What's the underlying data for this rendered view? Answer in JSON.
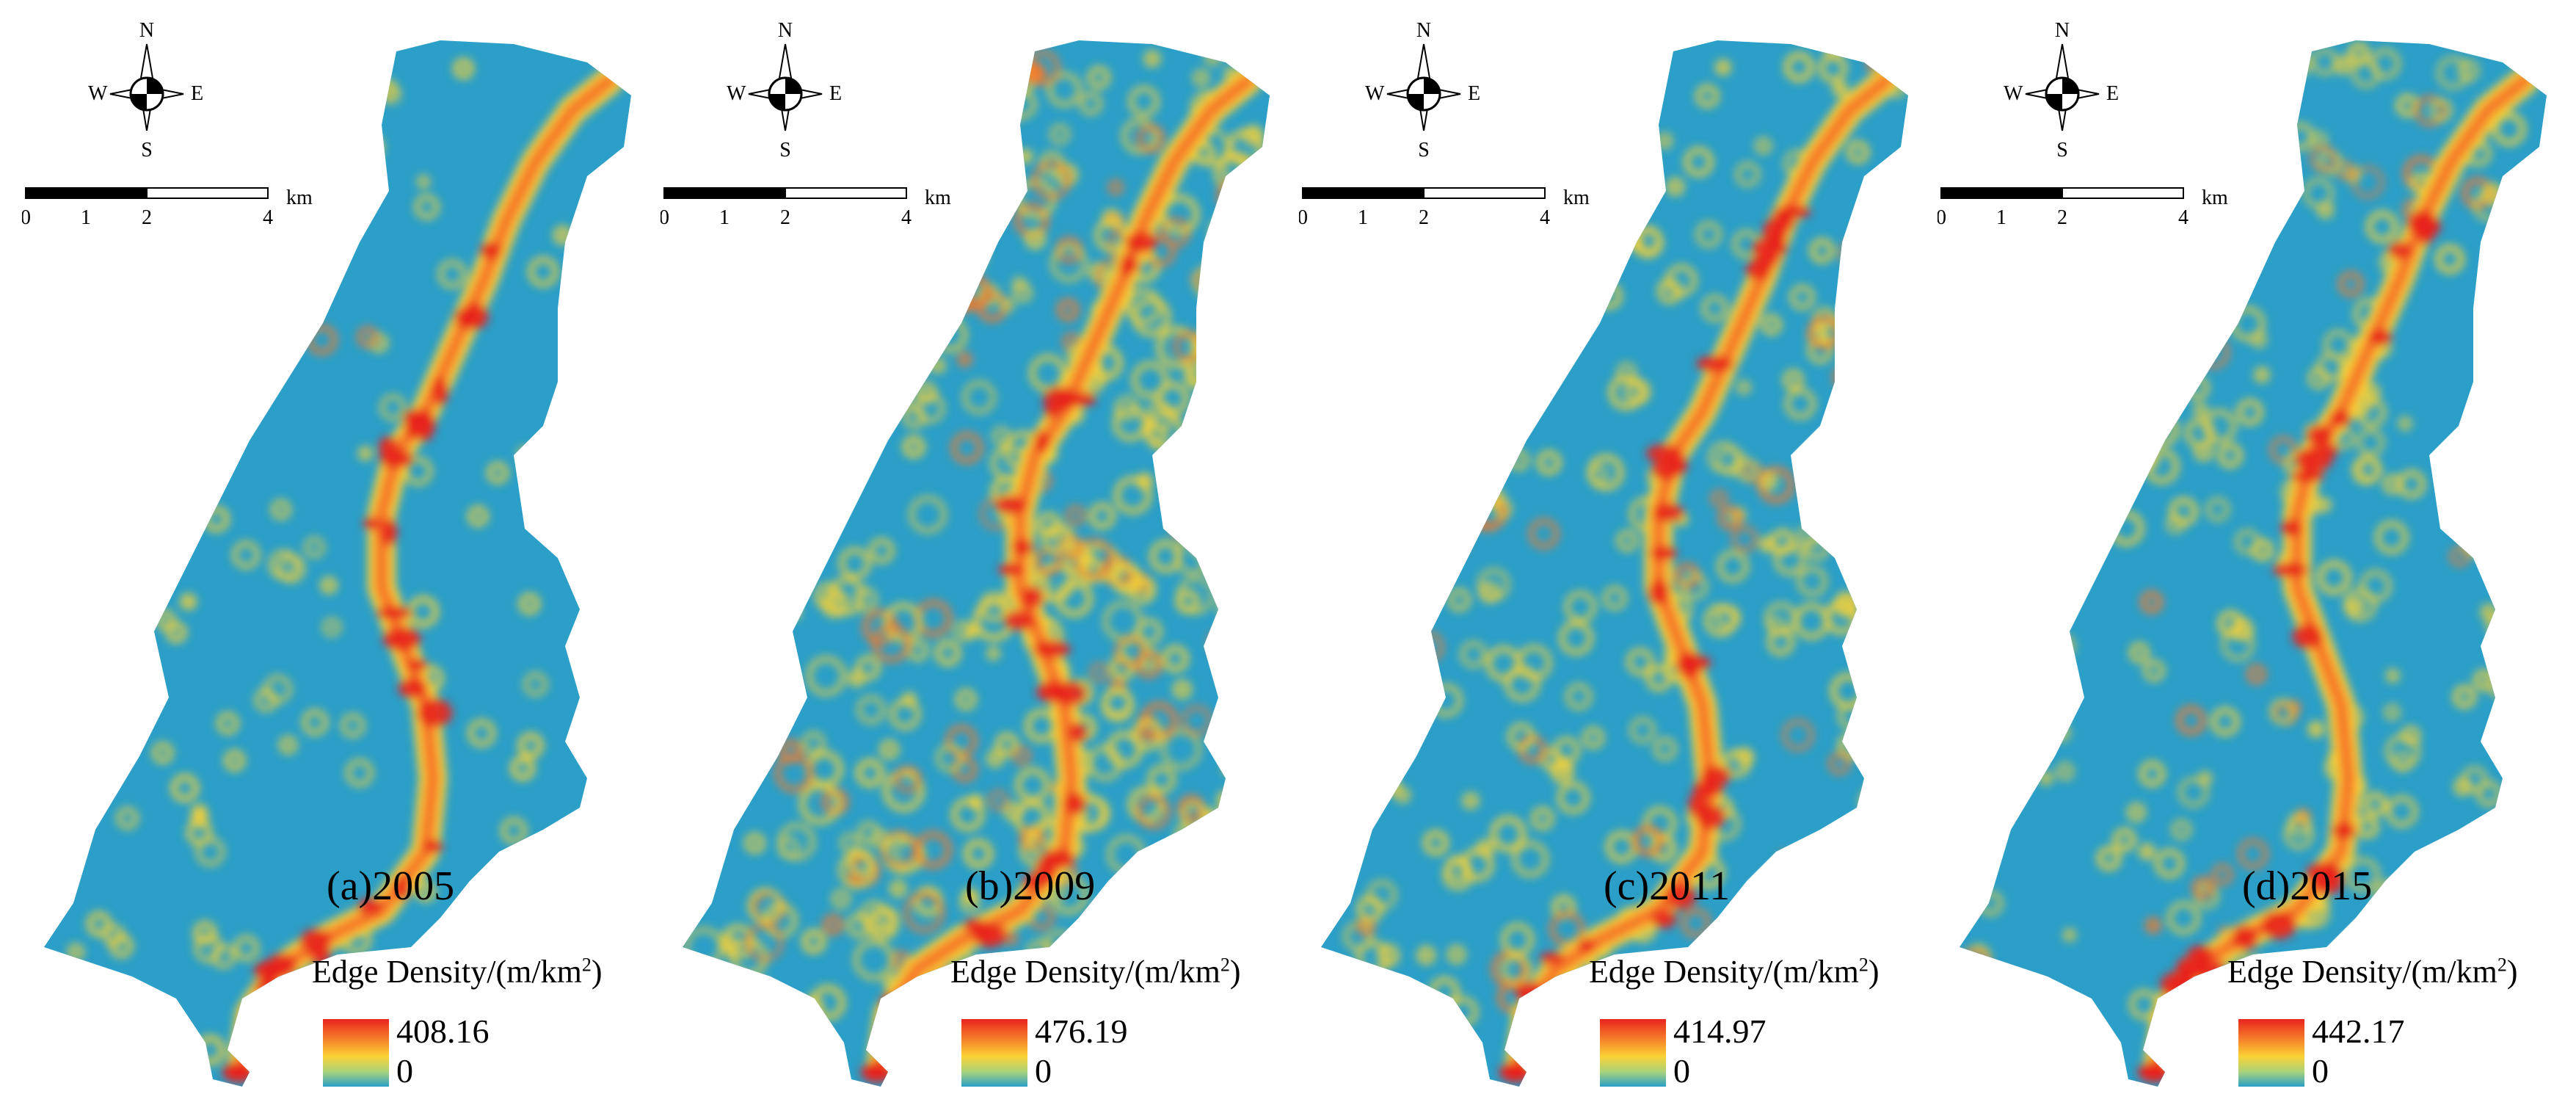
{
  "compass": {
    "n": "N",
    "s": "S",
    "e": "E",
    "w": "W"
  },
  "scale": {
    "ticks": [
      "0",
      "1",
      "2",
      "4"
    ],
    "unit": "km"
  },
  "colors": {
    "low": "#2b9fc8",
    "mid": "#fbd234",
    "high": "#e8241e"
  },
  "panels": [
    {
      "title": "(a)2005",
      "legend_title": "Edge Density/(m/km",
      "legend_sup": "2",
      "legend_close": ")",
      "max": "408.16",
      "min": "0",
      "density": 0.08
    },
    {
      "title": "(b)2009",
      "legend_title": "Edge Density/(m/km",
      "legend_sup": "2",
      "legend_close": ")",
      "max": "476.19",
      "min": "0",
      "density": 0.6
    },
    {
      "title": "(c)2011",
      "legend_title": "Edge Density/(m/km",
      "legend_sup": "2",
      "legend_close": ")",
      "max": "414.97",
      "min": "0",
      "density": 0.35
    },
    {
      "title": "(d)2015",
      "legend_title": "Edge Density/(m/km",
      "legend_sup": "2",
      "legend_close": ")",
      "max": "442.17",
      "min": "0",
      "density": 0.3
    }
  ]
}
